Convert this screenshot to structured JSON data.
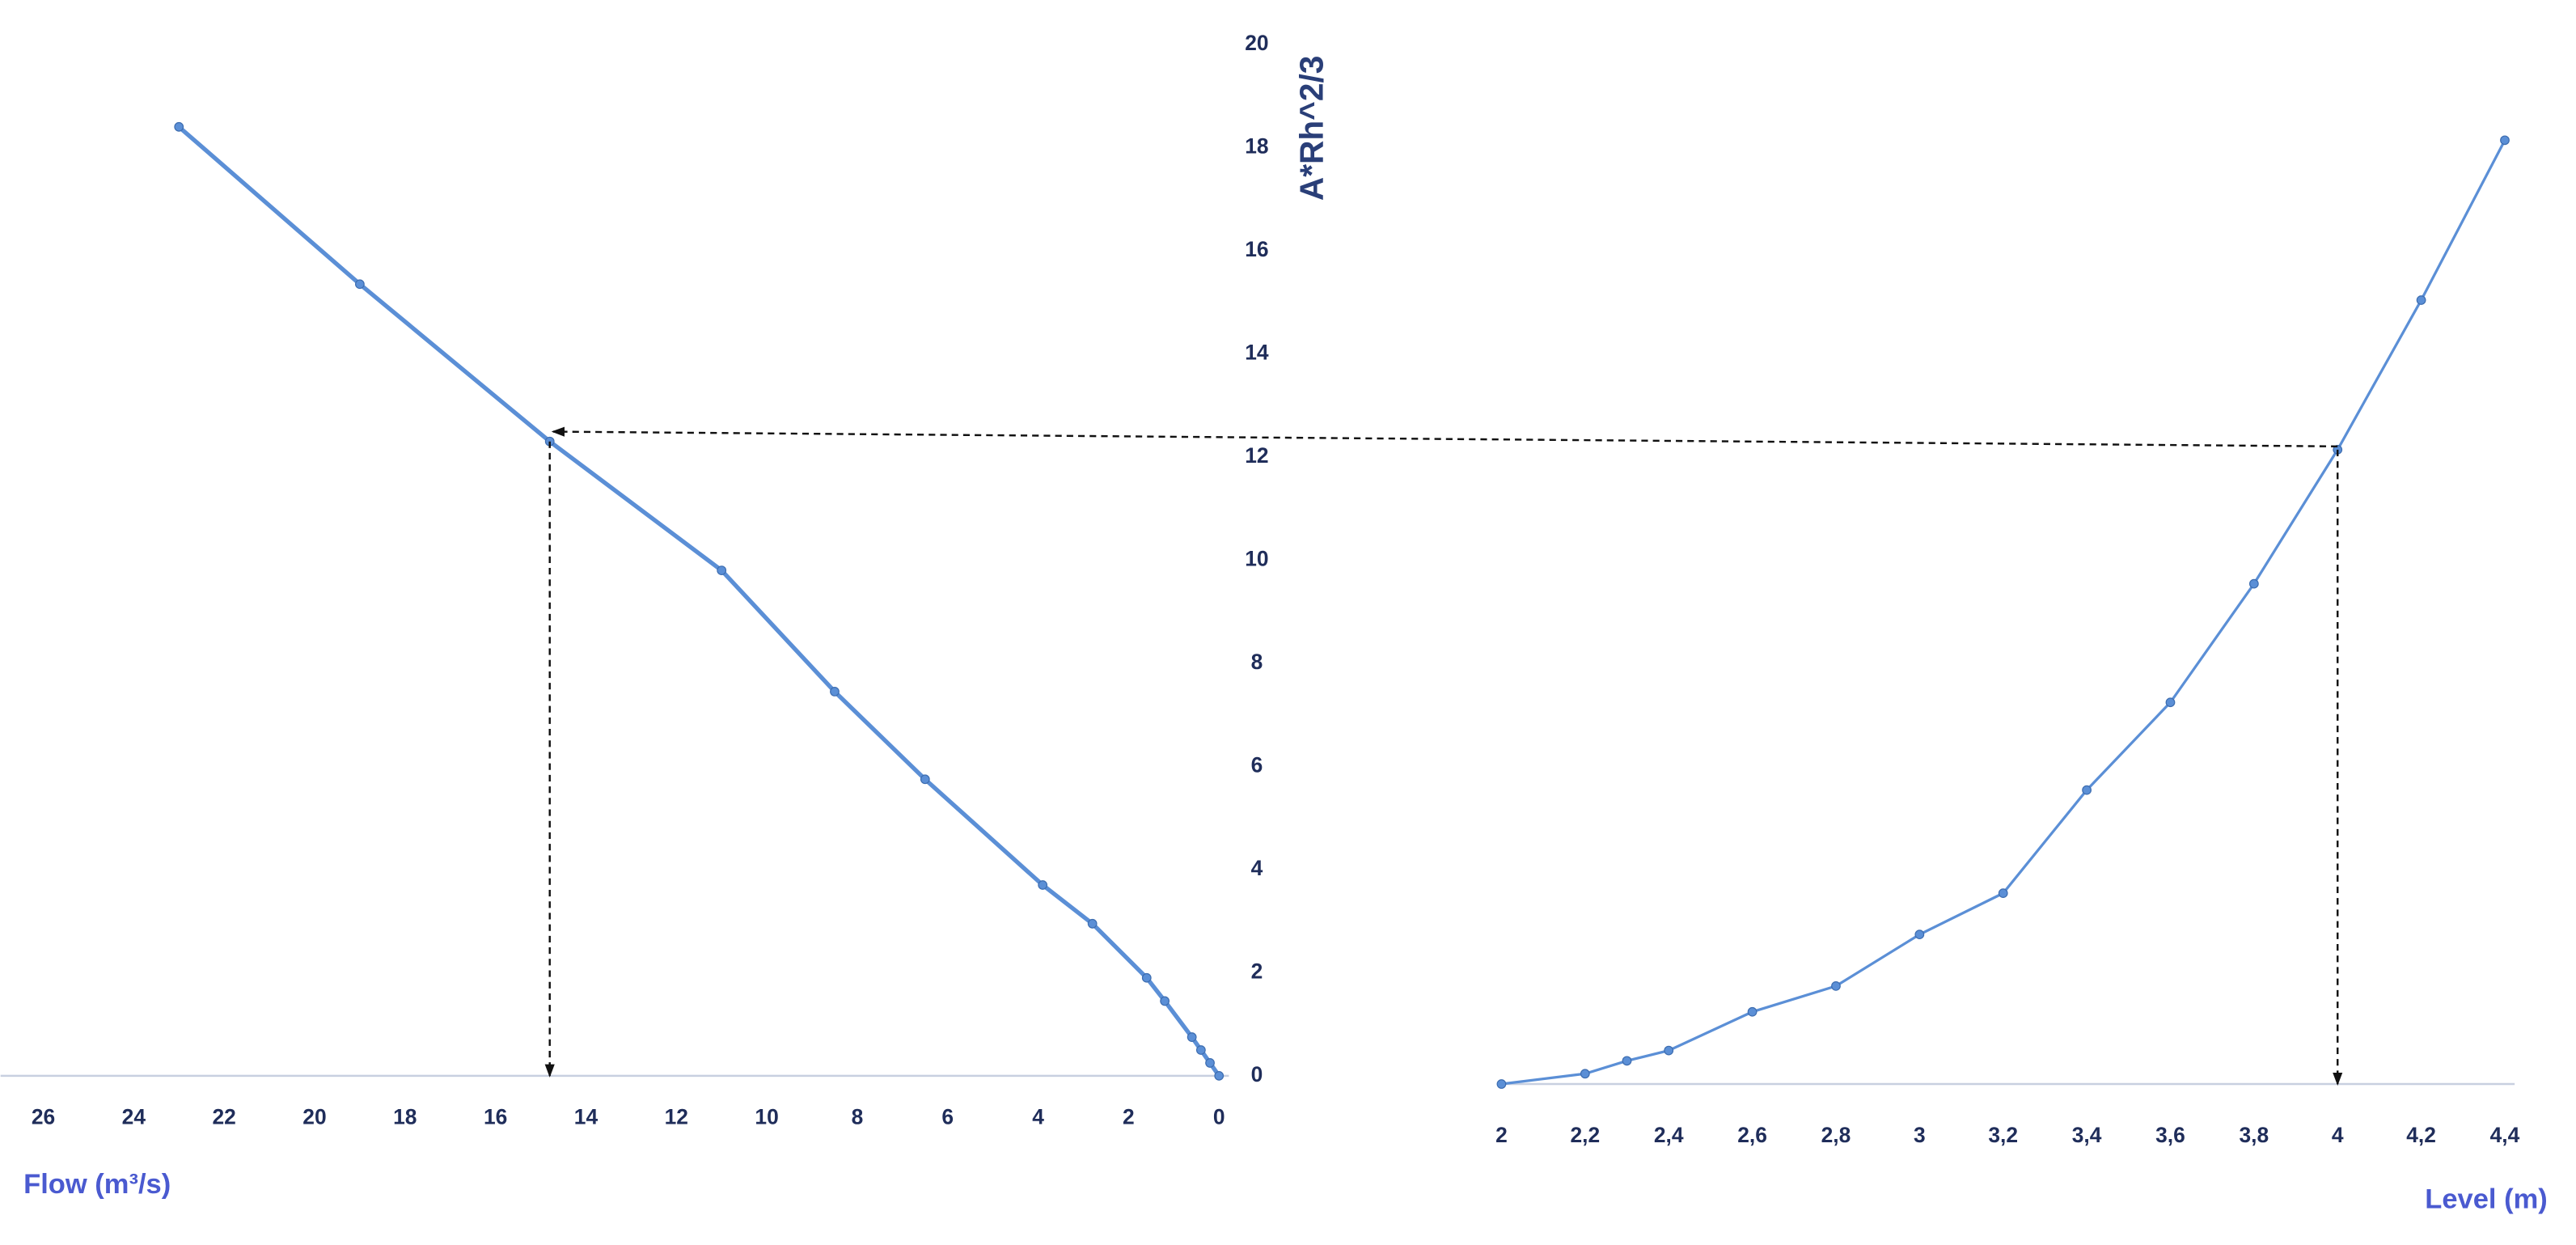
{
  "chart_data": [
    {
      "type": "line",
      "x_label": "Flow (m³/s)",
      "y_label": "A*Rh^2/3",
      "x": [
        23.0,
        19.0,
        14.8,
        11.0,
        8.5,
        6.5,
        3.9,
        2.8,
        1.6,
        1.2,
        0.6,
        0.4,
        0.2,
        0
      ],
      "series": [
        {
          "color": "#5b8fd6",
          "values": [
            18.4,
            15.35,
            12.3,
            9.8,
            7.45,
            5.75,
            3.7,
            2.95,
            1.9,
            1.45,
            0.75,
            0.5,
            0.25,
            0
          ]
        }
      ],
      "xlim": [
        26,
        0
      ],
      "xticks": [
        26,
        24,
        22,
        20,
        18,
        16,
        14,
        12,
        10,
        8,
        6,
        4,
        2,
        0
      ],
      "ylim": [
        0,
        20
      ],
      "yticks": [
        0,
        2,
        4,
        6,
        8,
        10,
        12,
        14,
        16,
        18,
        20
      ]
    },
    {
      "type": "line",
      "x_label": "Level (m)",
      "x": [
        2,
        2.2,
        2.3,
        2.4,
        2.6,
        2.8,
        3.0,
        3.2,
        3.4,
        3.6,
        3.8,
        4.0,
        4.2,
        4.4
      ],
      "series": [
        {
          "color": "#5b8fd6",
          "values": [
            0,
            0.2,
            0.45,
            0.65,
            1.4,
            1.9,
            2.9,
            3.7,
            5.7,
            7.4,
            9.7,
            12.3,
            15.2,
            18.3
          ]
        }
      ],
      "xlim": [
        2,
        4.4
      ],
      "xticks": [
        2,
        {
          "value": 2.2,
          "label": "2,2"
        },
        {
          "value": 2.4,
          "label": "2,4"
        },
        {
          "value": 2.6,
          "label": "2,6"
        },
        {
          "value": 2.8,
          "label": "2,8"
        },
        3,
        {
          "value": 3.2,
          "label": "3,2"
        },
        {
          "value": 3.4,
          "label": "3,4"
        },
        {
          "value": 3.6,
          "label": "3,6"
        },
        {
          "value": 3.8,
          "label": "3,8"
        },
        4,
        {
          "value": 4.2,
          "label": "4,2"
        },
        {
          "value": 4.4,
          "label": "4,4"
        }
      ],
      "ylim": [
        0,
        20
      ]
    }
  ]
}
